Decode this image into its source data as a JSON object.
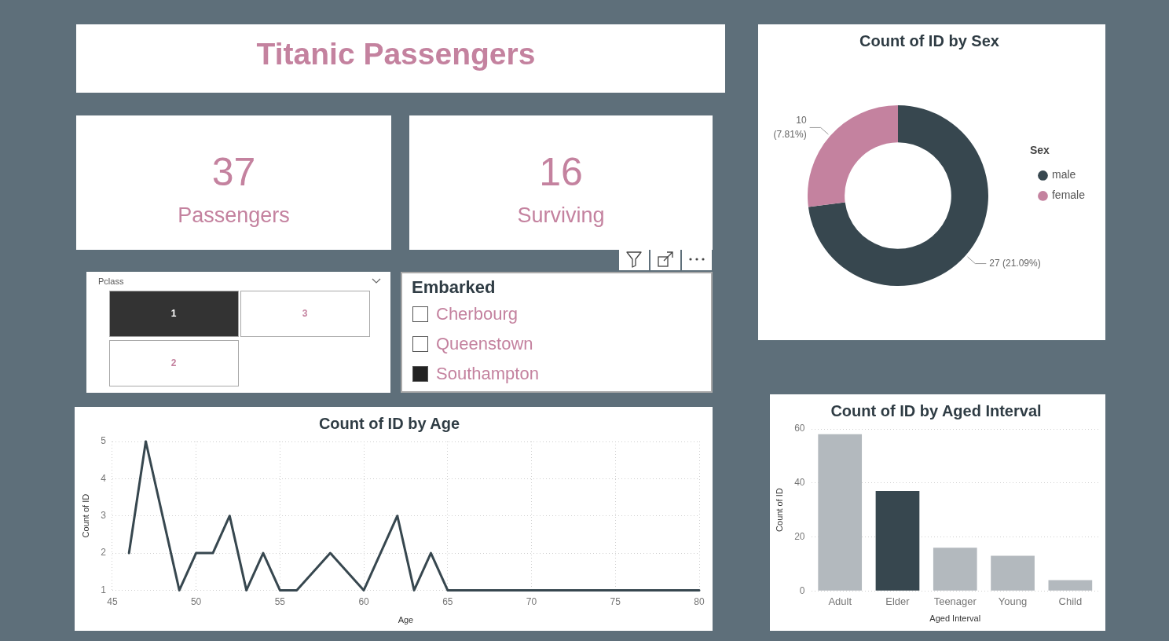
{
  "chart_data": [
    {
      "type": "other",
      "title": "Titanic Passengers"
    },
    {
      "type": "donut",
      "title": "Count of ID by Sex",
      "legend_title": "Sex",
      "legend": "right",
      "categories": [
        "male",
        "female"
      ],
      "values": [
        27,
        10
      ],
      "colors": [
        "#37474f",
        "#c4829f"
      ],
      "value_labels": [
        "27 (21.09%)",
        "10 (7.81%)"
      ]
    },
    {
      "type": "other",
      "values": [
        37
      ],
      "categories": [
        "Passengers"
      ],
      "data_labels": true
    },
    {
      "type": "other",
      "values": [
        16
      ],
      "categories": [
        "Surviving"
      ],
      "data_labels": true
    },
    {
      "type": "other",
      "title": "Pclass",
      "categories": [
        "1",
        "3",
        "2"
      ],
      "colors": [
        "#333333",
        "#ffffff",
        "#ffffff"
      ]
    },
    {
      "type": "other",
      "title": "Embarked",
      "categories": [
        "Cherbourg",
        "Queenstown",
        "Southampton"
      ],
      "colors": [
        "#ffffff",
        "#ffffff",
        "#222222"
      ]
    },
    {
      "type": "line",
      "title": "Count of ID by Age",
      "xlabel": "Age",
      "ylabel": "Count of ID",
      "x": [
        46,
        47,
        49,
        50,
        51,
        52,
        53,
        54,
        55,
        56,
        58,
        60,
        62,
        63,
        64,
        65,
        80
      ],
      "values": [
        2,
        5,
        1,
        2,
        2,
        3,
        1,
        2,
        1,
        1,
        2,
        1,
        3,
        1,
        2,
        1,
        1
      ],
      "color": "#37474f",
      "xlim": [
        45,
        80
      ],
      "xticks": [
        45,
        50,
        55,
        60,
        65,
        70,
        75,
        80
      ],
      "ylim": [
        1,
        5
      ],
      "yticks": [
        1,
        2,
        3,
        4,
        5
      ],
      "grid": true
    },
    {
      "type": "bar",
      "title": "Count of ID by Aged Interval",
      "xlabel": "Aged Interval",
      "ylabel": "Count of ID",
      "categories": [
        "Adult",
        "Elder",
        "Teenager",
        "Young",
        "Child"
      ],
      "values": [
        58,
        37,
        16,
        13,
        4
      ],
      "colors": [
        "#b3b9be",
        "#37474f",
        "#b3b9be",
        "#b3b9be",
        "#b3b9be"
      ],
      "ylim": [
        0,
        60
      ],
      "yticks": [
        0,
        20,
        40,
        60
      ],
      "grid": "y"
    }
  ]
}
